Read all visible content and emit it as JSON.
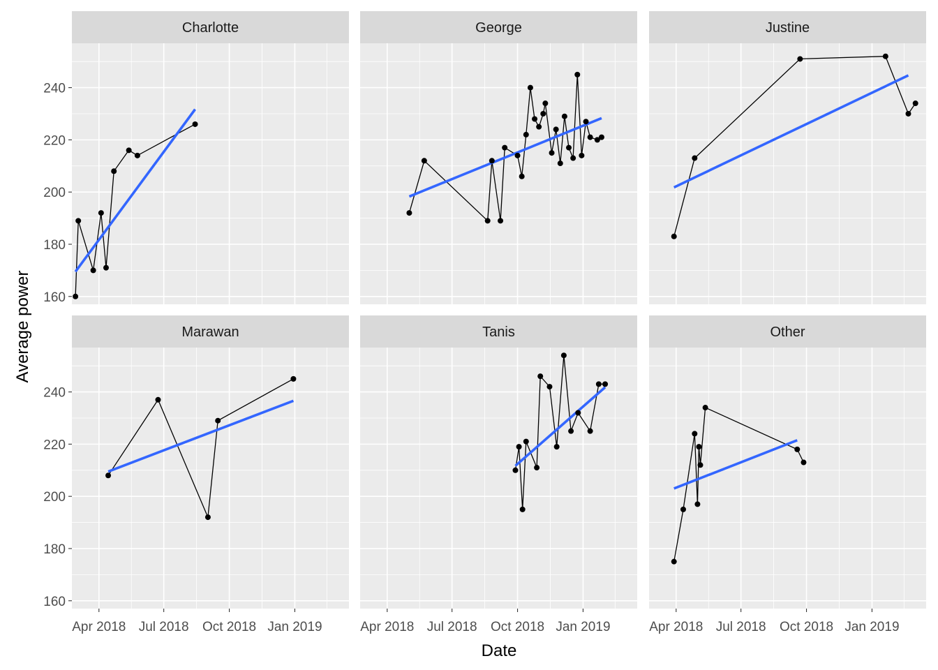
{
  "chart_data": {
    "type": "line",
    "facets": [
      "Charlotte",
      "George",
      "Justine",
      "Marawan",
      "Tanis",
      "Other"
    ],
    "xlabel": "Date",
    "ylabel": "Average power",
    "x_tick_labels": [
      "Apr 2018",
      "Jul 2018",
      "Oct 2018",
      "Jan 2019"
    ],
    "x_tick_dates": [
      "2018-04-01",
      "2018-07-01",
      "2018-10-01",
      "2019-01-01"
    ],
    "xlim": [
      "2018-02-22",
      "2019-03-18"
    ],
    "y_ticks": [
      160,
      180,
      200,
      220,
      240
    ],
    "ylim": [
      157,
      257
    ],
    "grid": true,
    "trend_color": "#3366FF",
    "point_color": "#000000",
    "panel_background": "#EBEBEB",
    "strip_background": "#D9D9D9",
    "series": [
      {
        "name": "Charlotte",
        "x": [
          "2018-02-27",
          "2018-03-03",
          "2018-03-24",
          "2018-04-04",
          "2018-04-11",
          "2018-04-22",
          "2018-05-13",
          "2018-05-25",
          "2018-08-14"
        ],
        "y": [
          160,
          189,
          170,
          192,
          171,
          208,
          216,
          214,
          226
        ],
        "trend": {
          "x": [
            "2018-02-27",
            "2018-08-14"
          ],
          "y": [
            169.5,
            231.7
          ]
        }
      },
      {
        "name": "George",
        "x": [
          "2018-05-02",
          "2018-05-23",
          "2018-08-20",
          "2018-08-26",
          "2018-09-07",
          "2018-09-13",
          "2018-10-01",
          "2018-10-07",
          "2018-10-13",
          "2018-10-19",
          "2018-10-25",
          "2018-10-31",
          "2018-11-06",
          "2018-11-09",
          "2018-11-18",
          "2018-11-24",
          "2018-11-30",
          "2018-12-06",
          "2018-12-12",
          "2018-12-18",
          "2018-12-24",
          "2018-12-30",
          "2019-01-05",
          "2019-01-11",
          "2019-01-21",
          "2019-01-27"
        ],
        "y": [
          192,
          212,
          189,
          212,
          189,
          217,
          214,
          206,
          222,
          240,
          228,
          225,
          230,
          234,
          215,
          224,
          211,
          229,
          217,
          213,
          245,
          214,
          227,
          221,
          220,
          221
        ],
        "trend": {
          "x": [
            "2018-05-02",
            "2019-01-27"
          ],
          "y": [
            198.3,
            228.3
          ]
        }
      },
      {
        "name": "Justine",
        "x": [
          "2018-03-29",
          "2018-04-27",
          "2018-09-22",
          "2019-01-20",
          "2019-02-21",
          "2019-03-03"
        ],
        "y": [
          183,
          213,
          251,
          252,
          230,
          234
        ],
        "trend": {
          "x": [
            "2018-03-29",
            "2019-02-21"
          ],
          "y": [
            201.8,
            244.7
          ]
        }
      },
      {
        "name": "Marawan",
        "x": [
          "2018-04-14",
          "2018-06-23",
          "2018-09-01",
          "2018-09-15",
          "2018-12-30"
        ],
        "y": [
          208,
          237,
          192,
          229,
          245
        ],
        "trend": {
          "x": [
            "2018-04-14",
            "2018-12-30"
          ],
          "y": [
            209.5,
            236.6
          ]
        }
      },
      {
        "name": "Tanis",
        "x": [
          "2018-09-28",
          "2018-10-03",
          "2018-10-08",
          "2018-10-13",
          "2018-10-28",
          "2018-11-02",
          "2018-11-15",
          "2018-11-25",
          "2018-12-05",
          "2018-12-15",
          "2018-12-25",
          "2019-01-11",
          "2019-01-23",
          "2019-02-01"
        ],
        "y": [
          210,
          219,
          195,
          221,
          211,
          246,
          242,
          219,
          254,
          225,
          232,
          225,
          243,
          243
        ],
        "trend": {
          "x": [
            "2018-09-28",
            "2019-02-01"
          ],
          "y": [
            211.7,
            241.8
          ]
        }
      },
      {
        "name": "Other",
        "x": [
          "2018-03-29",
          "2018-04-11",
          "2018-04-27",
          "2018-05-01",
          "2018-05-03",
          "2018-05-05",
          "2018-05-12",
          "2018-09-18",
          "2018-09-27"
        ],
        "y": [
          175,
          195,
          224,
          197,
          219,
          212,
          234,
          218,
          213
        ],
        "trend": {
          "x": [
            "2018-03-29",
            "2018-09-18"
          ],
          "y": [
            203.0,
            221.5
          ]
        }
      }
    ]
  }
}
